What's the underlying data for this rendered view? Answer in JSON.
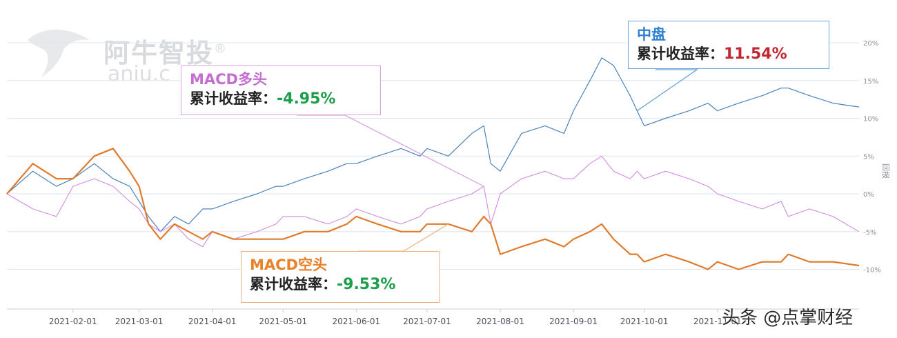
{
  "watermark": {
    "brand": "阿牛智投",
    "registered": "®",
    "site": "aniu.c"
  },
  "source_label": "头条 @点掌财经",
  "callouts": {
    "zhongpan": {
      "name": "中盘",
      "label": "累计收益率：",
      "value": "11.54%",
      "name_color": "#2f7fd0",
      "value_color": "#c0282f",
      "border_color": "#6aa3d8"
    },
    "macd_long": {
      "name": "MACD多头",
      "label": "累计收益率：",
      "value": "-4.95%",
      "name_color": "#c46fd0",
      "value_color": "#1d9e4a",
      "border_color": "#d9a4e0"
    },
    "macd_short": {
      "name": "MACD空头",
      "label": "累计收益率：",
      "value": "-9.53%",
      "name_color": "#e8812a",
      "value_color": "#1d9e4a",
      "border_color": "#f0b482"
    }
  },
  "chart_data": {
    "type": "line",
    "ylabel": "回报",
    "ylim": [
      -15,
      22
    ],
    "y_ticks": [
      "20%",
      "15%",
      "10%",
      "5%",
      "0%",
      "-5%",
      "-10%"
    ],
    "y_tick_values": [
      20,
      15,
      10,
      5,
      0,
      -5,
      -10
    ],
    "x_tick_labels": [
      "2021-02-01",
      "2021-03-01",
      "2021-04-01",
      "2021-05-01",
      "2021-06-01",
      "2021-07-01",
      "2021-08-01",
      "2021-09-01",
      "2021-10-01",
      "2021-11-01"
    ],
    "x_tick_dates": [
      "2021-02-01",
      "2021-03-01",
      "2021-04-01",
      "2021-05-01",
      "2021-06-01",
      "2021-07-01",
      "2021-08-01",
      "2021-09-01",
      "2021-10-01",
      "2021-11-01"
    ],
    "x_range": [
      "2021-01-04",
      "2021-12-31"
    ],
    "series": [
      {
        "name": "中盘",
        "color": "#4a82bd",
        "width": 1.2,
        "x": [
          "2021-01-04",
          "2021-01-15",
          "2021-01-25",
          "2021-02-01",
          "2021-02-10",
          "2021-02-18",
          "2021-02-25",
          "2021-03-01",
          "2021-03-05",
          "2021-03-10",
          "2021-03-16",
          "2021-03-22",
          "2021-03-28",
          "2021-04-01",
          "2021-04-10",
          "2021-04-20",
          "2021-04-28",
          "2021-05-01",
          "2021-05-10",
          "2021-05-20",
          "2021-05-28",
          "2021-06-01",
          "2021-06-10",
          "2021-06-20",
          "2021-06-28",
          "2021-07-01",
          "2021-07-10",
          "2021-07-20",
          "2021-07-25",
          "2021-07-28",
          "2021-08-01",
          "2021-08-10",
          "2021-08-20",
          "2021-08-28",
          "2021-09-01",
          "2021-09-08",
          "2021-09-13",
          "2021-09-18",
          "2021-09-25",
          "2021-09-28",
          "2021-10-01",
          "2021-10-10",
          "2021-10-20",
          "2021-10-28",
          "2021-11-01",
          "2021-11-10",
          "2021-11-20",
          "2021-11-28",
          "2021-12-01",
          "2021-12-10",
          "2021-12-20",
          "2021-12-31"
        ],
        "y": [
          0,
          3,
          1,
          2,
          4,
          2,
          1,
          -1,
          -3,
          -5,
          -3,
          -4,
          -2,
          -2,
          -1,
          0,
          1,
          1,
          2,
          3,
          4,
          4,
          5,
          6,
          5,
          6,
          5,
          8,
          9,
          4,
          3,
          8,
          9,
          8,
          11,
          15,
          18,
          17,
          13,
          11,
          9,
          10,
          11,
          12,
          11,
          12,
          13,
          14,
          14,
          13,
          12,
          11.5
        ]
      },
      {
        "name": "MACD多头",
        "color": "#d28be0",
        "width": 1.1,
        "x": [
          "2021-01-04",
          "2021-01-15",
          "2021-01-25",
          "2021-02-01",
          "2021-02-10",
          "2021-02-18",
          "2021-02-25",
          "2021-03-01",
          "2021-03-05",
          "2021-03-10",
          "2021-03-16",
          "2021-03-22",
          "2021-03-28",
          "2021-04-01",
          "2021-04-10",
          "2021-04-20",
          "2021-04-28",
          "2021-05-01",
          "2021-05-10",
          "2021-05-20",
          "2021-05-28",
          "2021-06-01",
          "2021-06-10",
          "2021-06-20",
          "2021-06-28",
          "2021-07-01",
          "2021-07-10",
          "2021-07-20",
          "2021-07-25",
          "2021-07-28",
          "2021-08-01",
          "2021-08-10",
          "2021-08-20",
          "2021-08-28",
          "2021-09-01",
          "2021-09-08",
          "2021-09-13",
          "2021-09-18",
          "2021-09-25",
          "2021-09-28",
          "2021-10-01",
          "2021-10-10",
          "2021-10-20",
          "2021-10-28",
          "2021-11-01",
          "2021-11-10",
          "2021-11-20",
          "2021-11-28",
          "2021-12-01",
          "2021-12-10",
          "2021-12-20",
          "2021-12-31"
        ],
        "y": [
          0,
          -2,
          -3,
          1,
          2,
          1,
          -1,
          -2,
          -4,
          -5,
          -4,
          -6,
          -7,
          -5,
          -6,
          -5,
          -4,
          -3,
          -3,
          -4,
          -3,
          -2,
          -3,
          -4,
          -3,
          -2,
          -1,
          0,
          1,
          -4,
          0,
          2,
          3,
          2,
          2,
          4,
          5,
          3,
          2,
          3,
          2,
          3,
          2,
          1,
          0,
          -1,
          -2,
          -1,
          -3,
          -2,
          -3,
          -5
        ]
      },
      {
        "name": "MACD空头",
        "color": "#e07b2d",
        "width": 2.2,
        "x": [
          "2021-01-04",
          "2021-01-15",
          "2021-01-25",
          "2021-02-01",
          "2021-02-10",
          "2021-02-18",
          "2021-02-25",
          "2021-03-01",
          "2021-03-05",
          "2021-03-10",
          "2021-03-16",
          "2021-03-22",
          "2021-03-28",
          "2021-04-01",
          "2021-04-10",
          "2021-04-20",
          "2021-04-28",
          "2021-05-01",
          "2021-05-10",
          "2021-05-20",
          "2021-05-28",
          "2021-06-01",
          "2021-06-10",
          "2021-06-20",
          "2021-06-28",
          "2021-07-01",
          "2021-07-10",
          "2021-07-20",
          "2021-07-25",
          "2021-07-28",
          "2021-08-01",
          "2021-08-10",
          "2021-08-20",
          "2021-08-28",
          "2021-09-01",
          "2021-09-08",
          "2021-09-13",
          "2021-09-18",
          "2021-09-25",
          "2021-09-28",
          "2021-10-01",
          "2021-10-10",
          "2021-10-20",
          "2021-10-28",
          "2021-11-01",
          "2021-11-10",
          "2021-11-20",
          "2021-11-28",
          "2021-12-01",
          "2021-12-10",
          "2021-12-20",
          "2021-12-31"
        ],
        "y": [
          0,
          4,
          2,
          2,
          5,
          6,
          3,
          1,
          -4,
          -6,
          -4,
          -5,
          -6,
          -5,
          -6,
          -6,
          -6,
          -6,
          -5,
          -5,
          -4,
          -3,
          -4,
          -5,
          -5,
          -4,
          -4,
          -5,
          -3,
          -4,
          -8,
          -7,
          -6,
          -7,
          -6,
          -5,
          -4,
          -6,
          -8,
          -8,
          -9,
          -8,
          -9,
          -10,
          -9,
          -10,
          -9,
          -9,
          -8,
          -9,
          -9,
          -9.5
        ]
      }
    ]
  }
}
